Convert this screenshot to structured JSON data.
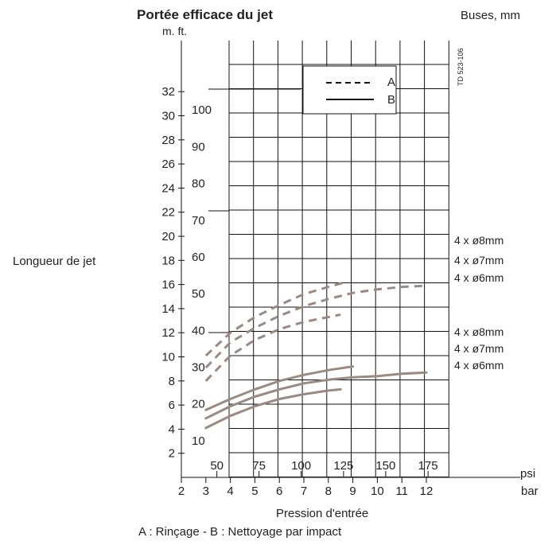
{
  "chart_data": {
    "type": "line",
    "title": "Portée efficace du jet",
    "subtitle": "Buses, mm",
    "units_label": "m.  ft.",
    "ylabel": "Longueur de jet",
    "xlabel": "Pression  d'entrée",
    "caption": "A : Rinçage - B : Nettoyage par impact",
    "doc_ref": "TD 523-106",
    "x_unit_bar": "bar",
    "x_unit_psi": "psi",
    "bar_ticks": [
      "2",
      "3",
      "4",
      "5",
      "6",
      "7",
      "8",
      "9",
      "10",
      "11",
      "12"
    ],
    "psi_ticks": [
      {
        "label": "50",
        "bar": 3.45
      },
      {
        "label": "75",
        "bar": 5.17
      },
      {
        "label": "100",
        "bar": 6.89
      },
      {
        "label": "125",
        "bar": 8.62
      },
      {
        "label": "150",
        "bar": 10.34
      },
      {
        "label": "175",
        "bar": 12.07
      }
    ],
    "m_ticks": [
      "2",
      "4",
      "6",
      "8",
      "10",
      "12",
      "14",
      "16",
      "18",
      "20",
      "22",
      "24",
      "26",
      "28",
      "30",
      "32"
    ],
    "ft_ticks": [
      "10",
      "20",
      "30",
      "40",
      "50",
      "60",
      "70",
      "80",
      "90",
      "100"
    ],
    "xlim_bar": [
      3,
      12
    ],
    "ylim_m": [
      0,
      34
    ],
    "legend": [
      {
        "key": "A",
        "style": "dashed"
      },
      {
        "key": "B",
        "style": "solid"
      }
    ],
    "series": [
      {
        "name": "A",
        "label": "4 x ø8mm",
        "style": "dashed",
        "x": [
          3,
          4,
          5,
          6,
          7,
          8,
          8.7
        ],
        "y": [
          10.1,
          12.0,
          13.3,
          14.3,
          15.2,
          15.8,
          16.2
        ]
      },
      {
        "name": "A",
        "label": "4 x ø7mm",
        "style": "dashed",
        "x": [
          3,
          4,
          5,
          6,
          7,
          8,
          9,
          10,
          11,
          12
        ],
        "y": [
          9.1,
          11.2,
          12.4,
          13.4,
          14.2,
          14.8,
          15.3,
          15.6,
          15.8,
          15.9
        ]
      },
      {
        "name": "A",
        "label": "4 x ø6mm",
        "style": "dashed",
        "x": [
          3,
          4,
          5,
          6,
          7,
          8,
          8.5
        ],
        "y": [
          8.0,
          10.1,
          11.4,
          12.3,
          12.9,
          13.3,
          13.5
        ]
      },
      {
        "name": "B",
        "label": "4 x ø8mm",
        "style": "solid",
        "x": [
          3,
          4,
          5,
          6,
          7,
          8,
          9
        ],
        "y": [
          5.6,
          6.5,
          7.3,
          8.0,
          8.5,
          8.9,
          9.2
        ]
      },
      {
        "name": "B",
        "label": "4 x ø7mm",
        "style": "solid",
        "x": [
          3,
          4,
          5,
          6,
          7,
          8,
          9,
          10,
          11,
          12
        ],
        "y": [
          4.9,
          5.9,
          6.7,
          7.3,
          7.8,
          8.1,
          8.3,
          8.4,
          8.6,
          8.7
        ]
      },
      {
        "name": "B",
        "label": "4 x ø6mm",
        "style": "solid",
        "x": [
          3,
          4,
          5,
          6,
          7,
          8,
          8.5
        ],
        "y": [
          4.1,
          5.1,
          5.9,
          6.5,
          6.9,
          7.2,
          7.3
        ]
      }
    ],
    "colors": {
      "curve": "#9a8a84",
      "grid": "#111111",
      "text": "#222222"
    },
    "grid": true,
    "legend_position": "top-center"
  }
}
